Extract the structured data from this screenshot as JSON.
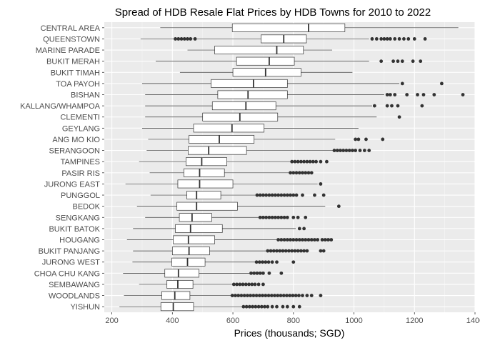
{
  "chart_data": {
    "type": "boxplot",
    "orientation": "horizontal",
    "title": "Spread of HDB Resale Flat Prices by HDB Towns for 2010 to 2022",
    "xlabel": "Prices (thousands; SGD)",
    "ylabel": "",
    "xlim": [
      175,
      1400
    ],
    "x_ticks": [
      200,
      400,
      600,
      800,
      1000,
      1200,
      1400
    ],
    "grid": true,
    "colors": {
      "panel_background": "#ebebeb",
      "grid_major": "#ffffff",
      "grid_minor": "#f5f5f5",
      "box_fill": "#ffffff",
      "box_outline": "#333333",
      "outlier": "#333333"
    },
    "series": [
      {
        "name": "CENTRAL AREA",
        "whisker_low": 360,
        "q1": 598,
        "median": 850,
        "q3": 970,
        "whisker_high": 1345,
        "outliers": []
      },
      {
        "name": "QUEENSTOWN",
        "whisker_low": 295,
        "q1": 693,
        "median": 768,
        "q3": 843,
        "whisker_high": 1050,
        "outliers": [
          410,
          420,
          430,
          440,
          450,
          460,
          475,
          1060,
          1075,
          1090,
          1100,
          1110,
          1120,
          1135,
          1150,
          1165,
          1180,
          1200,
          1235
        ]
      },
      {
        "name": "MARINE PARADE",
        "whisker_low": 450,
        "q1": 540,
        "median": 745,
        "q3": 833,
        "whisker_high": 928,
        "outliers": []
      },
      {
        "name": "BUKIT MERAH",
        "whisker_low": 345,
        "q1": 612,
        "median": 720,
        "q3": 803,
        "whisker_high": 1050,
        "outliers": [
          1090,
          1130,
          1145,
          1160,
          1195,
          1220
        ]
      },
      {
        "name": "BUKIT TIMAH",
        "whisker_low": 425,
        "q1": 600,
        "median": 708,
        "q3": 825,
        "whisker_high": 995,
        "outliers": []
      },
      {
        "name": "TOA PAYOH",
        "whisker_low": 300,
        "q1": 528,
        "median": 668,
        "q3": 780,
        "whisker_high": 1150,
        "outliers": [
          1160,
          1290
        ]
      },
      {
        "name": "BISHAN",
        "whisker_low": 310,
        "q1": 550,
        "median": 650,
        "q3": 780,
        "whisker_high": 1100,
        "outliers": [
          1110,
          1120,
          1135,
          1175,
          1210,
          1230,
          1265,
          1360
        ]
      },
      {
        "name": "KALLANG/WHAMPOA",
        "whisker_low": 310,
        "q1": 532,
        "median": 643,
        "q3": 742,
        "whisker_high": 1060,
        "outliers": [
          1068,
          1110,
          1125,
          1145,
          1225
        ]
      },
      {
        "name": "CLEMENTI",
        "whisker_low": 310,
        "q1": 500,
        "median": 623,
        "q3": 748,
        "whisker_high": 1075,
        "outliers": [
          1150
        ]
      },
      {
        "name": "GEYLANG",
        "whisker_low": 300,
        "q1": 470,
        "median": 597,
        "q3": 703,
        "whisker_high": 1015,
        "outliers": []
      },
      {
        "name": "ANG MO KIO",
        "whisker_low": 320,
        "q1": 455,
        "median": 555,
        "q3": 670,
        "whisker_high": 938,
        "outliers": [
          1005,
          1015,
          1040,
          1095
        ]
      },
      {
        "name": "SERANGOON",
        "whisker_low": 315,
        "q1": 452,
        "median": 520,
        "q3": 645,
        "whisker_high": 930,
        "outliers": [
          935,
          945,
          955,
          965,
          975,
          985,
          995,
          1005,
          1020,
          1035,
          1050
        ]
      },
      {
        "name": "TAMPINES",
        "whisker_low": 290,
        "q1": 445,
        "median": 497,
        "q3": 580,
        "whisker_high": 790,
        "outliers": [
          795,
          805,
          815,
          825,
          835,
          845,
          855,
          865,
          875,
          890,
          910
        ]
      },
      {
        "name": "PASIR RIS",
        "whisker_low": 325,
        "q1": 438,
        "median": 490,
        "q3": 572,
        "whisker_high": 785,
        "outliers": [
          790,
          800,
          810,
          820,
          830,
          840,
          850,
          860
        ]
      },
      {
        "name": "JURONG EAST",
        "whisker_low": 245,
        "q1": 418,
        "median": 490,
        "q3": 600,
        "whisker_high": 880,
        "outliers": [
          890
        ]
      },
      {
        "name": "PUNGGOL",
        "whisker_low": 328,
        "q1": 448,
        "median": 480,
        "q3": 560,
        "whisker_high": 675,
        "outliers": [
          680,
          690,
          700,
          710,
          720,
          730,
          740,
          750,
          760,
          770,
          780,
          790,
          800,
          810,
          830,
          870,
          900
        ]
      },
      {
        "name": "BEDOK",
        "whisker_low": 283,
        "q1": 415,
        "median": 480,
        "q3": 615,
        "whisker_high": 905,
        "outliers": [
          950
        ]
      },
      {
        "name": "SENGKANG",
        "whisker_low": 310,
        "q1": 423,
        "median": 465,
        "q3": 530,
        "whisker_high": 685,
        "outliers": [
          690,
          700,
          710,
          720,
          730,
          740,
          750,
          760,
          770,
          780,
          800,
          815,
          840
        ]
      },
      {
        "name": "BUKIT BATOK",
        "whisker_low": 270,
        "q1": 410,
        "median": 460,
        "q3": 565,
        "whisker_high": 808,
        "outliers": [
          820,
          835
        ]
      },
      {
        "name": "HOUGANG",
        "whisker_low": 250,
        "q1": 403,
        "median": 453,
        "q3": 540,
        "whisker_high": 745,
        "outliers": [
          750,
          760,
          770,
          780,
          790,
          800,
          810,
          820,
          830,
          840,
          850,
          860,
          870,
          880,
          895,
          905,
          915,
          925
        ]
      },
      {
        "name": "BUKIT PANJANG",
        "whisker_low": 270,
        "q1": 400,
        "median": 455,
        "q3": 523,
        "whisker_high": 710,
        "outliers": [
          715,
          725,
          735,
          745,
          755,
          765,
          775,
          785,
          795,
          805,
          815,
          825,
          835,
          845,
          890,
          900
        ]
      },
      {
        "name": "JURONG WEST",
        "whisker_low": 268,
        "q1": 398,
        "median": 450,
        "q3": 508,
        "whisker_high": 673,
        "outliers": [
          678,
          688,
          698,
          708,
          718,
          730,
          745,
          800
        ]
      },
      {
        "name": "CHOA CHU KANG",
        "whisker_low": 237,
        "q1": 375,
        "median": 420,
        "q3": 488,
        "whisker_high": 655,
        "outliers": [
          660,
          670,
          680,
          690,
          700,
          720,
          760
        ]
      },
      {
        "name": "SEMBAWANG",
        "whisker_low": 290,
        "q1": 382,
        "median": 418,
        "q3": 468,
        "whisker_high": 598,
        "outliers": [
          603,
          613,
          623,
          633,
          643,
          653,
          663,
          673,
          685,
          700
        ]
      },
      {
        "name": "WOODLANDS",
        "whisker_low": 240,
        "q1": 365,
        "median": 408,
        "q3": 458,
        "whisker_high": 595,
        "outliers": [
          598,
          608,
          618,
          628,
          638,
          648,
          658,
          668,
          678,
          688,
          698,
          708,
          718,
          728,
          738,
          748,
          758,
          768,
          778,
          788,
          798,
          808,
          818,
          830,
          845,
          860,
          890
        ]
      },
      {
        "name": "YISHUN",
        "whisker_low": 225,
        "q1": 362,
        "median": 403,
        "q3": 470,
        "whisker_high": 630,
        "outliers": [
          635,
          645,
          655,
          665,
          675,
          685,
          695,
          705,
          715,
          730,
          745,
          765,
          780,
          800,
          820
        ]
      }
    ]
  }
}
